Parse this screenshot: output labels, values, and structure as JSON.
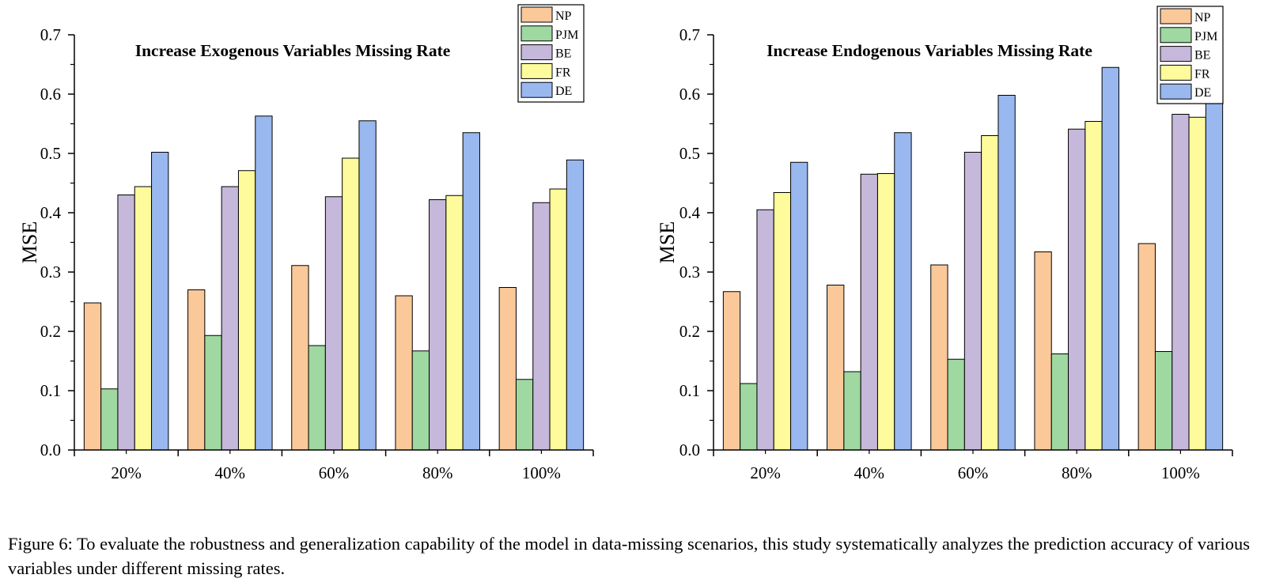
{
  "figure": {
    "caption": "Figure 6: To evaluate the robustness and generalization capability of the model in data-missing scenarios, this study systematically analyzes the prediction accuracy of various variables under different missing rates."
  },
  "colors": {
    "NP": "#fac899",
    "PJM": "#9fd8a0",
    "BE": "#c5b8da",
    "FR": "#fdfb9b",
    "DE": "#98b8ef"
  },
  "chart_data": [
    {
      "type": "bar",
      "title": "Increase Exogenous Variables Missing Rate",
      "xlabel": "",
      "ylabel": "MSE",
      "ylim": [
        0,
        0.7
      ],
      "yticks": [
        "0.0",
        "0.1",
        "0.2",
        "0.3",
        "0.4",
        "0.5",
        "0.6",
        "0.7"
      ],
      "categories": [
        "20%",
        "40%",
        "60%",
        "80%",
        "100%"
      ],
      "legend_position": "top-right",
      "grid": false,
      "series": [
        {
          "name": "NP",
          "values": [
            0.248,
            0.27,
            0.311,
            0.26,
            0.274
          ]
        },
        {
          "name": "PJM",
          "values": [
            0.103,
            0.193,
            0.176,
            0.167,
            0.119
          ]
        },
        {
          "name": "BE",
          "values": [
            0.43,
            0.444,
            0.427,
            0.422,
            0.417
          ]
        },
        {
          "name": "FR",
          "values": [
            0.444,
            0.471,
            0.492,
            0.429,
            0.44
          ]
        },
        {
          "name": "DE",
          "values": [
            0.502,
            0.563,
            0.555,
            0.535,
            0.489
          ]
        }
      ]
    },
    {
      "type": "bar",
      "title": "Increase Endogenous Variables Missing Rate",
      "xlabel": "",
      "ylabel": "MSE",
      "ylim": [
        0,
        0.7
      ],
      "yticks": [
        "0.0",
        "0.1",
        "0.2",
        "0.3",
        "0.4",
        "0.5",
        "0.6",
        "0.7"
      ],
      "categories": [
        "20%",
        "40%",
        "60%",
        "80%",
        "100%"
      ],
      "legend_position": "top-right",
      "grid": false,
      "series": [
        {
          "name": "NP",
          "values": [
            0.267,
            0.278,
            0.312,
            0.334,
            0.348
          ]
        },
        {
          "name": "PJM",
          "values": [
            0.112,
            0.132,
            0.153,
            0.162,
            0.166
          ]
        },
        {
          "name": "BE",
          "values": [
            0.405,
            0.465,
            0.502,
            0.541,
            0.566
          ]
        },
        {
          "name": "FR",
          "values": [
            0.434,
            0.466,
            0.53,
            0.554,
            0.561
          ]
        },
        {
          "name": "DE",
          "values": [
            0.485,
            0.535,
            0.598,
            0.645,
            0.629
          ]
        }
      ]
    }
  ]
}
